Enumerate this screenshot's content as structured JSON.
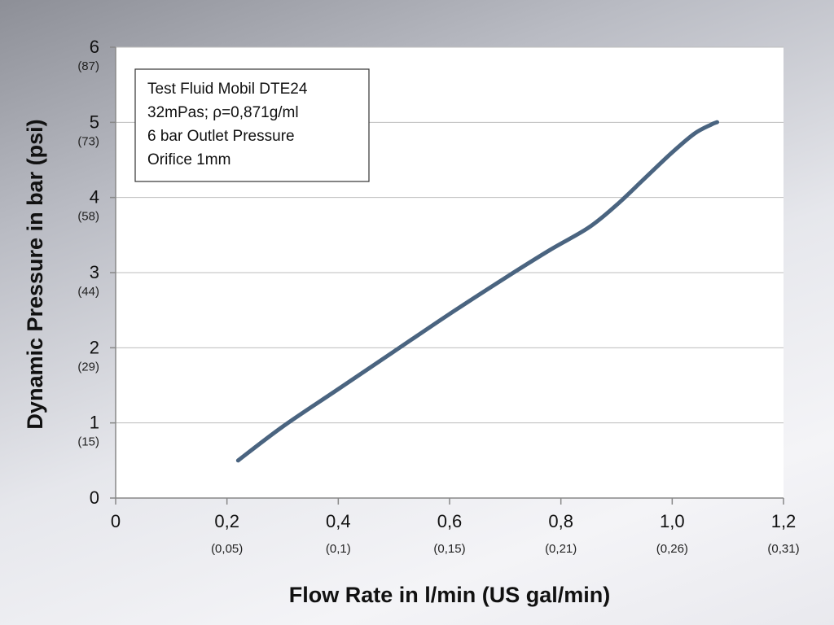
{
  "chart_data": {
    "type": "line",
    "xlabel": "Flow Rate in l/min (US gal/min)",
    "ylabel": "Dynamic Pressure in bar (psi)",
    "xlim": [
      0,
      1.2
    ],
    "ylim": [
      0,
      6
    ],
    "grid": true,
    "x_ticks": [
      {
        "value": 0,
        "label": "0",
        "sublabel": ""
      },
      {
        "value": 0.2,
        "label": "0,2",
        "sublabel": "(0,05)"
      },
      {
        "value": 0.4,
        "label": "0,4",
        "sublabel": "(0,1)"
      },
      {
        "value": 0.6,
        "label": "0,6",
        "sublabel": "(0,15)"
      },
      {
        "value": 0.8,
        "label": "0,8",
        "sublabel": "(0,21)"
      },
      {
        "value": 1.0,
        "label": "1,0",
        "sublabel": "(0,26)"
      },
      {
        "value": 1.2,
        "label": "1,2",
        "sublabel": "(0,31)"
      }
    ],
    "y_ticks": [
      {
        "value": 0,
        "label": "0",
        "sublabel": ""
      },
      {
        "value": 1,
        "label": "1",
        "sublabel": "(15)"
      },
      {
        "value": 2,
        "label": "2",
        "sublabel": "(29)"
      },
      {
        "value": 3,
        "label": "3",
        "sublabel": "(44)"
      },
      {
        "value": 4,
        "label": "4",
        "sublabel": "(58)"
      },
      {
        "value": 5,
        "label": "5",
        "sublabel": "(73)"
      },
      {
        "value": 6,
        "label": "6",
        "sublabel": "(87)"
      }
    ],
    "series": [
      {
        "color": "#4a6480",
        "x": [
          0.22,
          0.3,
          0.4,
          0.5,
          0.6,
          0.7,
          0.78,
          0.85,
          0.9,
          0.95,
          1.0,
          1.04,
          1.07,
          1.08,
          1.08
        ],
        "y": [
          0.5,
          0.95,
          1.45,
          1.95,
          2.45,
          2.93,
          3.3,
          3.6,
          3.9,
          4.25,
          4.6,
          4.85,
          4.97,
          5.0,
          5.0
        ]
      }
    ],
    "legend_position": "top-left",
    "annotation": {
      "lines": [
        "Test Fluid Mobil DTE24",
        "32mPas; ρ=0,871g/ml",
        "6 bar Outlet Pressure",
        "Orifice 1mm"
      ]
    }
  }
}
